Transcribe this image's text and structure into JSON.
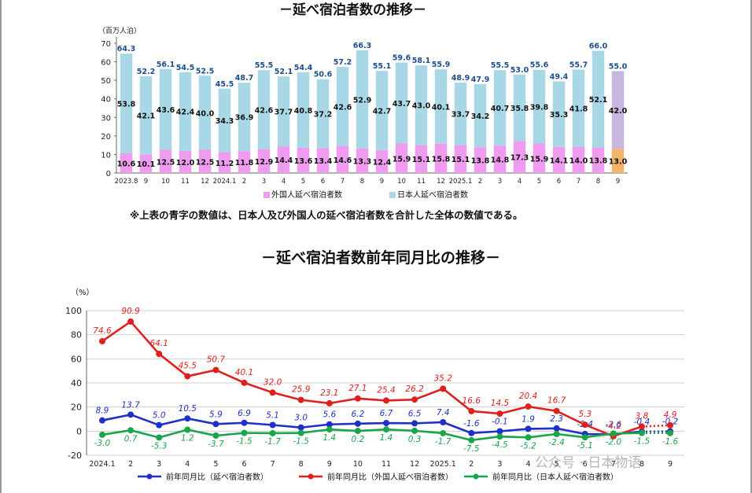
{
  "titles": {
    "chart1": "－延べ宿泊者数の推移－",
    "chart2": "－延べ宿泊者数前年同月比の推移－"
  },
  "note": "※上表の青字の数値は、日本人及び外国人の延べ宿泊者数を合計した全体の数値である。",
  "watermark": "公众号 · 日本物语",
  "colors": {
    "foreign_bar": "#ef9bef",
    "japanese_bar": "#a8d8e6",
    "foreign_bar_prelim": "#f2b46b",
    "japanese_bar_prelim": "#c8b6e0",
    "total_label": "#1a4e8c",
    "line_total": "#1f2fc8",
    "line_foreign": "#e0201c",
    "line_japanese": "#1aa54a"
  },
  "chart_data": [
    {
      "type": "bar",
      "stacked": true,
      "title": "－延べ宿泊者数の推移－",
      "unit_label": "（百万人泊）",
      "categories": [
        "2023.8",
        "9",
        "10",
        "11",
        "12",
        "2024.1",
        "2",
        "3",
        "4",
        "5",
        "6",
        "7",
        "8",
        "9",
        "10",
        "11",
        "12",
        "2025.1",
        "2",
        "3",
        "4",
        "5",
        "6",
        "7",
        "8",
        "9"
      ],
      "series": [
        {
          "name": "外国人延べ宿泊者数",
          "values": [
            10.6,
            10.1,
            12.5,
            12.0,
            12.5,
            11.2,
            11.8,
            12.9,
            14.4,
            13.6,
            13.4,
            14.6,
            13.3,
            12.4,
            15.9,
            15.1,
            15.8,
            15.1,
            13.8,
            14.8,
            17.3,
            15.9,
            14.1,
            14.0,
            13.8,
            13.0
          ]
        },
        {
          "name": "日本人延べ宿泊者数",
          "values": [
            53.8,
            42.1,
            43.6,
            42.4,
            40.0,
            34.3,
            36.9,
            42.6,
            37.7,
            40.8,
            37.2,
            42.6,
            52.9,
            42.7,
            43.7,
            43.0,
            40.1,
            33.7,
            34.2,
            40.7,
            35.8,
            39.8,
            35.3,
            41.8,
            52.1,
            42.0
          ]
        }
      ],
      "totals": [
        64.3,
        52.2,
        56.1,
        54.5,
        52.5,
        45.5,
        48.7,
        55.5,
        52.1,
        54.4,
        50.6,
        57.2,
        66.3,
        55.1,
        59.6,
        58.1,
        55.9,
        48.9,
        47.9,
        55.5,
        53.0,
        55.6,
        49.4,
        55.7,
        66.0,
        55.0
      ],
      "ylim": [
        0,
        70
      ],
      "yticks": [
        0,
        10,
        20,
        30,
        40,
        50,
        60,
        70
      ],
      "legend": "bottom"
    },
    {
      "type": "line",
      "title": "－延べ宿泊者数前年同月比の推移－",
      "unit_label": "（%）",
      "categories": [
        "2024.1",
        "2",
        "3",
        "4",
        "5",
        "6",
        "7",
        "8",
        "9",
        "10",
        "11",
        "12",
        "2025.1",
        "2",
        "3",
        "4",
        "5",
        "6",
        "7",
        "8",
        "9"
      ],
      "series": [
        {
          "name": "前年同月比（延べ宿泊者数）",
          "values": [
            8.9,
            13.7,
            5.0,
            10.5,
            5.9,
            6.9,
            5.1,
            3.0,
            5.6,
            6.2,
            6.7,
            6.5,
            7.4,
            -1.6,
            -0.1,
            1.9,
            2.3,
            -2.4,
            -2.6,
            -0.4,
            -0.2
          ]
        },
        {
          "name": "前年同月比（外国人延べ宿泊者数）",
          "values": [
            74.6,
            90.9,
            64.1,
            45.5,
            50.7,
            40.1,
            32.0,
            25.9,
            23.1,
            27.1,
            25.4,
            26.2,
            35.2,
            16.6,
            14.5,
            20.4,
            16.7,
            5.3,
            -4.2,
            3.8,
            4.9
          ]
        },
        {
          "name": "前年同月比（日本人延べ宿泊者数）",
          "values": [
            -3.0,
            0.7,
            -5.3,
            1.2,
            -3.7,
            -1.5,
            -1.7,
            -1.5,
            1.4,
            0.2,
            1.4,
            0.3,
            -1.7,
            -7.5,
            -4.5,
            -5.2,
            -2.4,
            -5.1,
            -2.0,
            -1.5,
            -1.6
          ]
        }
      ],
      "ylim": [
        -20,
        100
      ],
      "yticks": [
        -20,
        0,
        20,
        40,
        60,
        80,
        100
      ],
      "legend": "bottom"
    }
  ]
}
